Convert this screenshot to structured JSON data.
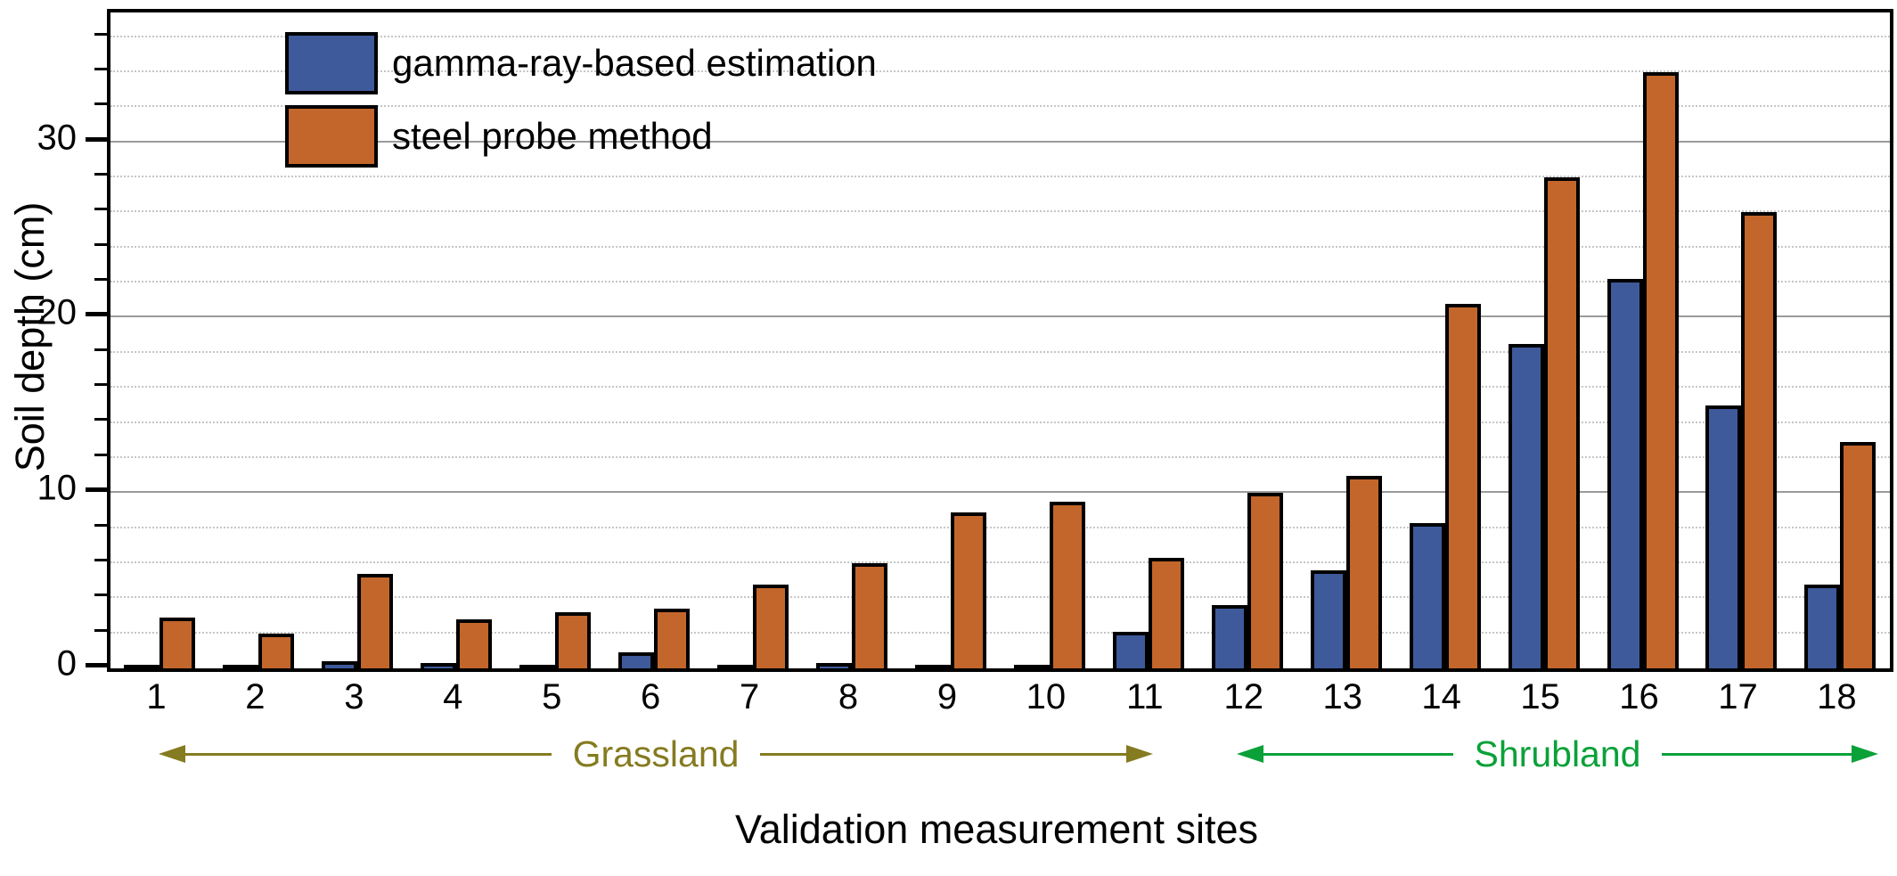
{
  "chart_data": {
    "type": "bar",
    "title": "",
    "xlabel": "Validation measurement sites",
    "ylabel": "Soil depth (cm)",
    "categories": [
      "1",
      "2",
      "3",
      "4",
      "5",
      "6",
      "7",
      "8",
      "9",
      "10",
      "11",
      "12",
      "13",
      "14",
      "15",
      "16",
      "17",
      "18"
    ],
    "series": [
      {
        "name": "gamma-ray-based estimation",
        "color": "#3E5A9B",
        "values": [
          0.1,
          0.1,
          0.4,
          0.3,
          0.2,
          0.9,
          0.2,
          0.3,
          0.1,
          0.2,
          2.1,
          3.6,
          5.6,
          8.3,
          18.5,
          22.2,
          15.0,
          4.8
        ]
      },
      {
        "name": "steel probe method",
        "color": "#C2662B",
        "values": [
          2.9,
          2.0,
          5.4,
          2.8,
          3.2,
          3.4,
          4.8,
          6.0,
          8.9,
          9.5,
          6.3,
          10.0,
          11.0,
          20.8,
          28.0,
          34.0,
          26.0,
          12.9
        ]
      }
    ],
    "ylim": [
      0,
      37.4
    ],
    "yticks": [
      0,
      10,
      20,
      30
    ],
    "minor_tick_step": 2,
    "grid": "major solid gray, minor dotted light-gray, horizontal only",
    "legend_position": "top-left inside plot",
    "frame_color": "#000000",
    "group_annotations": [
      {
        "label": "Grassland",
        "sites": "1-11",
        "color": "#857B20"
      },
      {
        "label": "Shrubland",
        "sites": "12-18",
        "color": "#0AA139"
      }
    ]
  }
}
